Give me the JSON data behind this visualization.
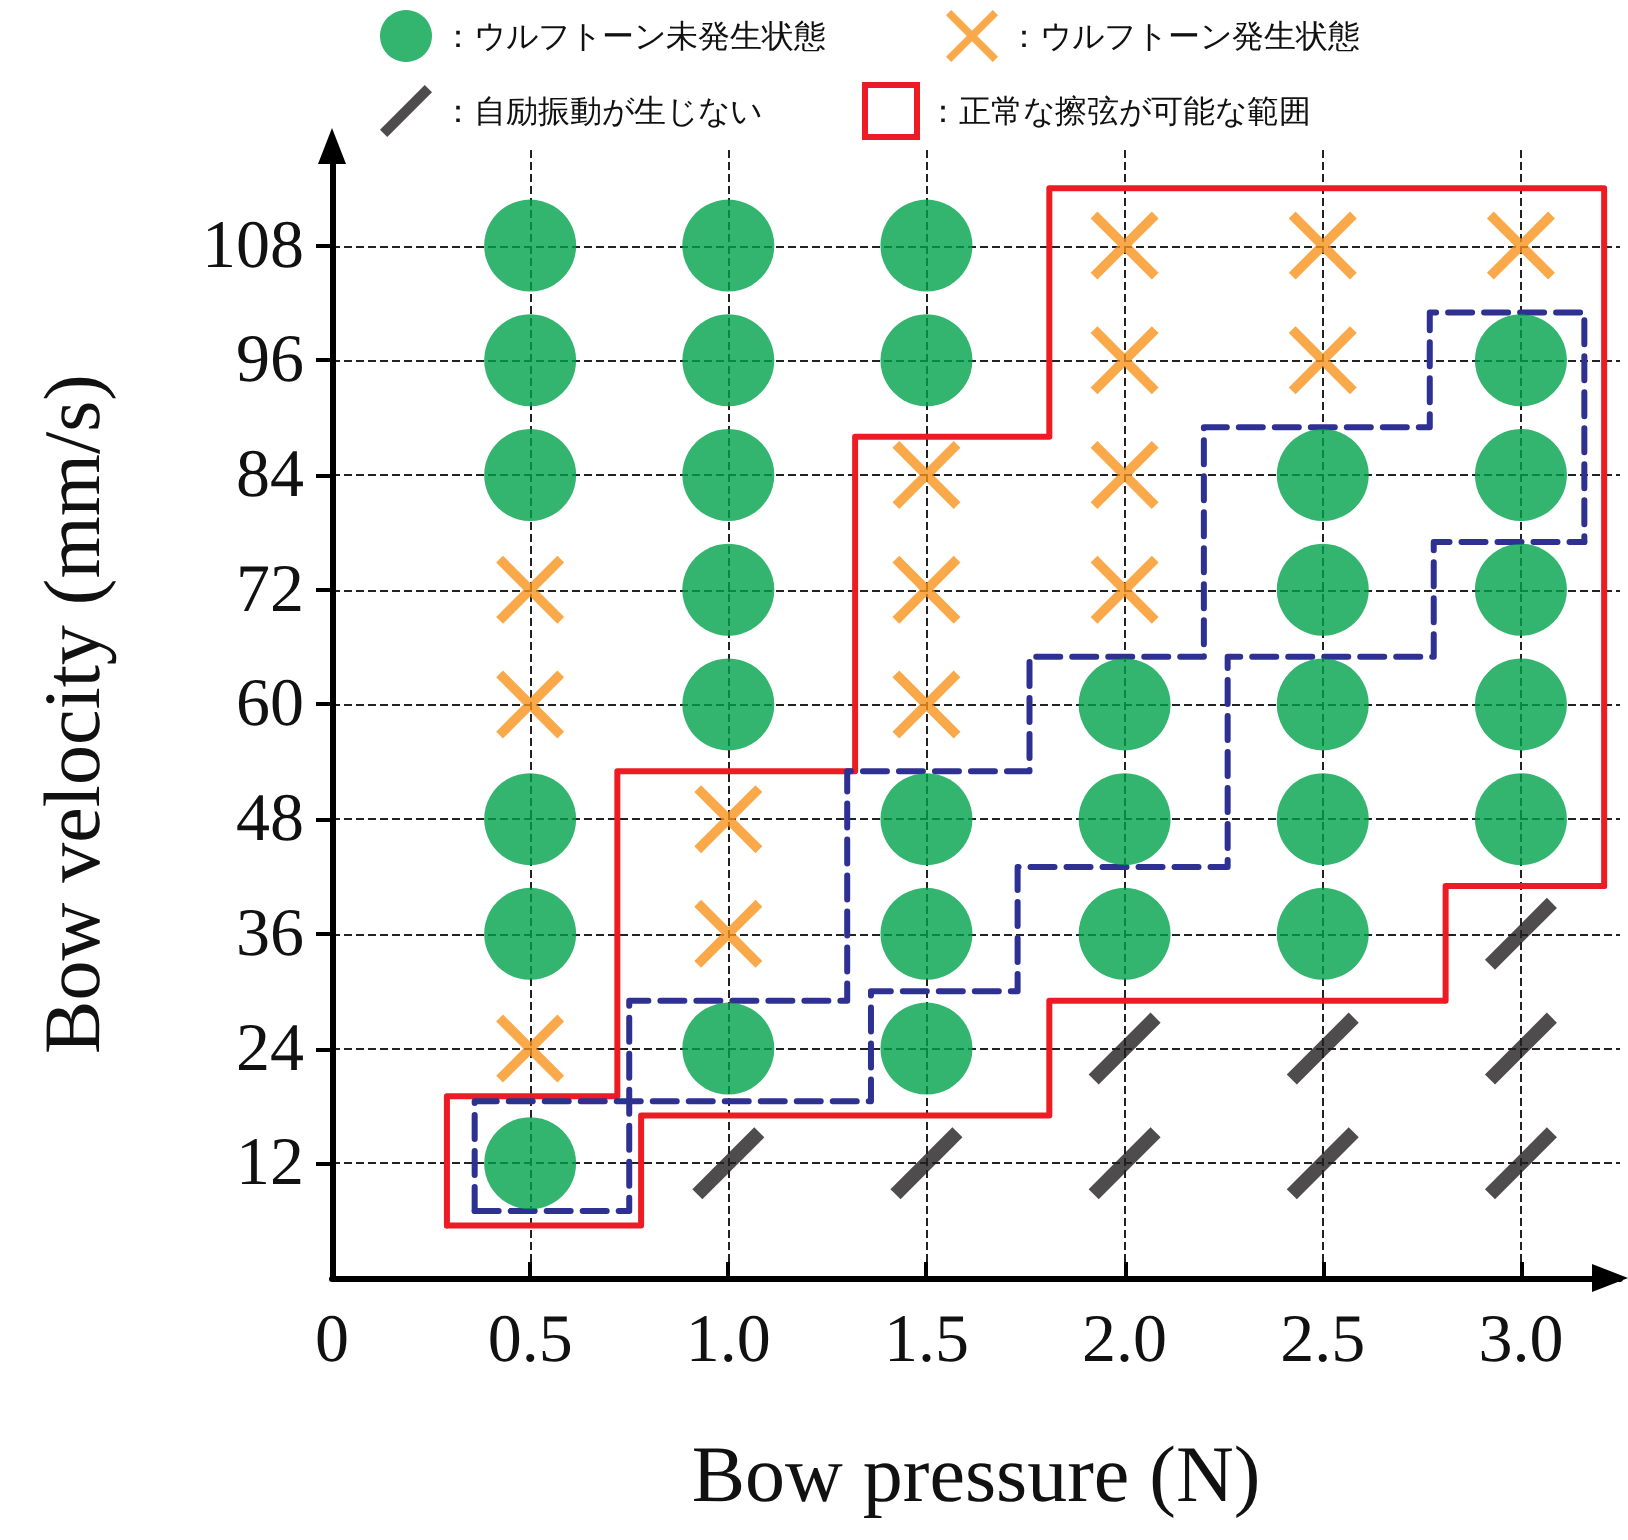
{
  "chart_data": {
    "type": "scatter",
    "xlabel": "Bow pressure (N)",
    "ylabel": "Bow velocity (mm/s)",
    "xlim": [
      0,
      3.25
    ],
    "ylim": [
      0,
      118
    ],
    "xticks": [
      {
        "value": 0,
        "label": "0"
      },
      0.5,
      {
        "value": 1,
        "label": "1.0"
      },
      1.5,
      {
        "value": 2,
        "label": "2.0"
      },
      2.5,
      {
        "value": 3,
        "label": "3.0"
      }
    ],
    "yticks": [
      12,
      24,
      36,
      48,
      60,
      72,
      84,
      96,
      108
    ],
    "grid": true,
    "legend": "top",
    "series": [
      {
        "name": "：ウルフトーン未発生状態",
        "color": "#00a14b",
        "marker": "circle",
        "x": [
          0.5,
          0.5,
          0.5,
          0.5,
          0.5,
          0.5,
          1,
          1,
          1,
          1,
          1,
          1,
          1.5,
          1.5,
          1.5,
          1.5,
          1.5,
          2,
          2,
          2,
          2.5,
          2.5,
          2.5,
          2.5,
          2.5,
          3,
          3,
          3,
          3,
          3
        ],
        "values": [
          108,
          96,
          84,
          48,
          36,
          12,
          108,
          96,
          84,
          72,
          60,
          24,
          108,
          96,
          48,
          36,
          24,
          60,
          48,
          36,
          84,
          72,
          60,
          48,
          36,
          96,
          84,
          72,
          60,
          48
        ]
      },
      {
        "name": "：ウルフトーン発生状態",
        "color": "#f7941d",
        "marker": "cross",
        "x": [
          0.5,
          0.5,
          0.5,
          1,
          1,
          1.5,
          1.5,
          1.5,
          2,
          2,
          2,
          2,
          2.5,
          2.5,
          3
        ],
        "values": [
          72,
          60,
          24,
          48,
          36,
          84,
          72,
          60,
          108,
          96,
          84,
          72,
          108,
          96,
          108
        ]
      },
      {
        "name": "：自励振動が生じない",
        "color": "#231f20",
        "x": [
          1,
          1.5,
          2,
          2,
          2.5,
          2.5,
          3,
          3,
          3
        ],
        "values": [
          12,
          12,
          24,
          12,
          24,
          12,
          36,
          24,
          12
        ]
      },
      {
        "name": "：正常な擦弦が可能な範囲",
        "color": "#ed1c24",
        "type": "line",
        "marker": "none",
        "line_style": "solid",
        "x": [
          0.29,
          0.29,
          0.72,
          0.72,
          1.32,
          1.32,
          1.81,
          1.81,
          3.21,
          3.21
        ],
        "values": [
          5.5,
          19,
          19,
          53,
          53,
          88,
          88,
          114,
          114,
          41
        ]
      },
      {
        "color": "#ed1c24",
        "type": "line",
        "marker": "none",
        "line_style": "solid",
        "x": [
          0.29,
          0.78,
          0.78,
          1.81,
          1.81,
          2.81,
          2.81,
          3.21
        ],
        "values": [
          5.5,
          5.5,
          17,
          17,
          29,
          29,
          41,
          41
        ]
      },
      {
        "color": "#2e3192",
        "type": "line",
        "marker": "none",
        "line_style": "dashed",
        "x": [
          0.36,
          0.75,
          0.75,
          1.3,
          1.3,
          1.76,
          1.76,
          2.2,
          2.2,
          2.77,
          2.77,
          3.16,
          3.16
        ],
        "values": [
          7,
          7,
          29,
          29,
          53,
          53,
          65,
          65,
          89,
          89,
          101,
          101,
          77
        ]
      },
      {
        "color": "#2e3192",
        "type": "line",
        "marker": "none",
        "line_style": "dashed",
        "x": [
          0.36,
          0.36,
          1.36,
          1.36,
          1.73,
          1.73,
          2.26,
          2.26,
          2.78,
          2.78,
          3.16
        ],
        "values": [
          7,
          18.5,
          18.5,
          30,
          30,
          43,
          43,
          65,
          65,
          77,
          77
        ]
      }
    ]
  }
}
